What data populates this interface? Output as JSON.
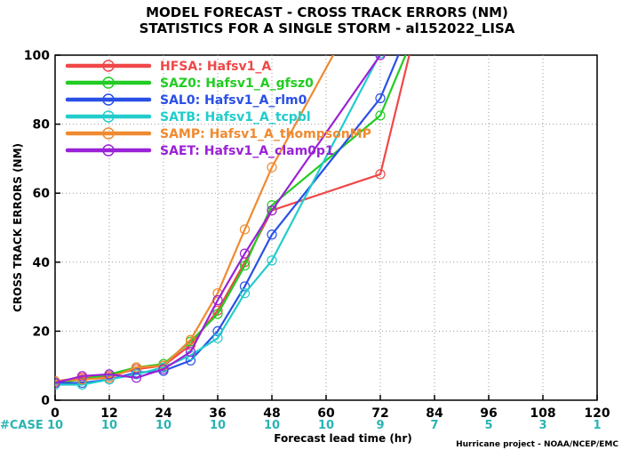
{
  "chart_data": {
    "type": "line",
    "title": "MODEL FORECAST - CROSS TRACK ERRORS (NM)",
    "subtitle": "STATISTICS FOR A SINGLE STORM - al152022_LISA",
    "xlabel": "Forecast lead time (hr)",
    "ylabel": "CROSS TRACK ERRORS (NM)",
    "xlim": [
      0,
      120
    ],
    "ylim": [
      0,
      100
    ],
    "x_ticks": [
      "0",
      "12",
      "24",
      "36",
      "48",
      "60",
      "72",
      "84",
      "96",
      "108",
      "120"
    ],
    "y_ticks": [
      "0",
      "20",
      "40",
      "60",
      "80",
      "100"
    ],
    "case_label": "#CASE",
    "case_counts": [
      "10",
      "10",
      "10",
      "10",
      "10",
      "10",
      "9",
      "7",
      "5",
      "3",
      "1"
    ],
    "credit": "Hurricane project - NOAA/NCEP/EMC",
    "series": [
      {
        "name": "HFSA: Hafsv1_A",
        "color": "#f04848",
        "x": [
          0,
          6,
          12,
          18,
          24,
          30,
          36,
          42,
          48,
          72,
          84
        ],
        "y": [
          5.5,
          6.5,
          7,
          9,
          10,
          16,
          26,
          40,
          55,
          65.5,
          130
        ]
      },
      {
        "name": "SAZ0: Hafsv1_A_gfsz0",
        "color": "#22cc22",
        "x": [
          0,
          6,
          12,
          18,
          24,
          30,
          36,
          42,
          48,
          72,
          84
        ],
        "y": [
          5,
          6,
          7.5,
          9.5,
          10.5,
          17,
          25,
          39,
          56.5,
          82.5,
          120
        ]
      },
      {
        "name": "SAL0: Hafsv1_A_rlm0",
        "color": "#2a50e6",
        "x": [
          0,
          6,
          12,
          18,
          24,
          30,
          36,
          42,
          48,
          72,
          84
        ],
        "y": [
          5,
          5,
          6,
          8,
          8.5,
          11.5,
          20,
          33,
          48,
          87.5,
          125
        ]
      },
      {
        "name": "SATB: Hafsv1_A_tcpbl",
        "color": "#22cccc",
        "x": [
          0,
          6,
          12,
          18,
          24,
          30,
          36,
          42,
          48,
          72
        ],
        "y": [
          4.5,
          4.5,
          6,
          7.5,
          9.5,
          13,
          18,
          31,
          40.5,
          100.5
        ]
      },
      {
        "name": "SAMP: Hafsv1_A_thompsonMP",
        "color": "#f08a30",
        "x": [
          0,
          6,
          12,
          18,
          24,
          30,
          36,
          42,
          48,
          72
        ],
        "y": [
          5.5,
          6,
          6.5,
          9.5,
          10,
          17.5,
          31,
          49.5,
          67.5,
          125
        ]
      },
      {
        "name": "SAET: Hafsv1_A_clam0p1",
        "color": "#9a22d6",
        "x": [
          0,
          6,
          12,
          18,
          24,
          30,
          36,
          42,
          48,
          72
        ],
        "y": [
          5,
          7,
          7.5,
          6.5,
          9,
          14,
          29,
          42.5,
          55,
          100
        ]
      }
    ]
  }
}
